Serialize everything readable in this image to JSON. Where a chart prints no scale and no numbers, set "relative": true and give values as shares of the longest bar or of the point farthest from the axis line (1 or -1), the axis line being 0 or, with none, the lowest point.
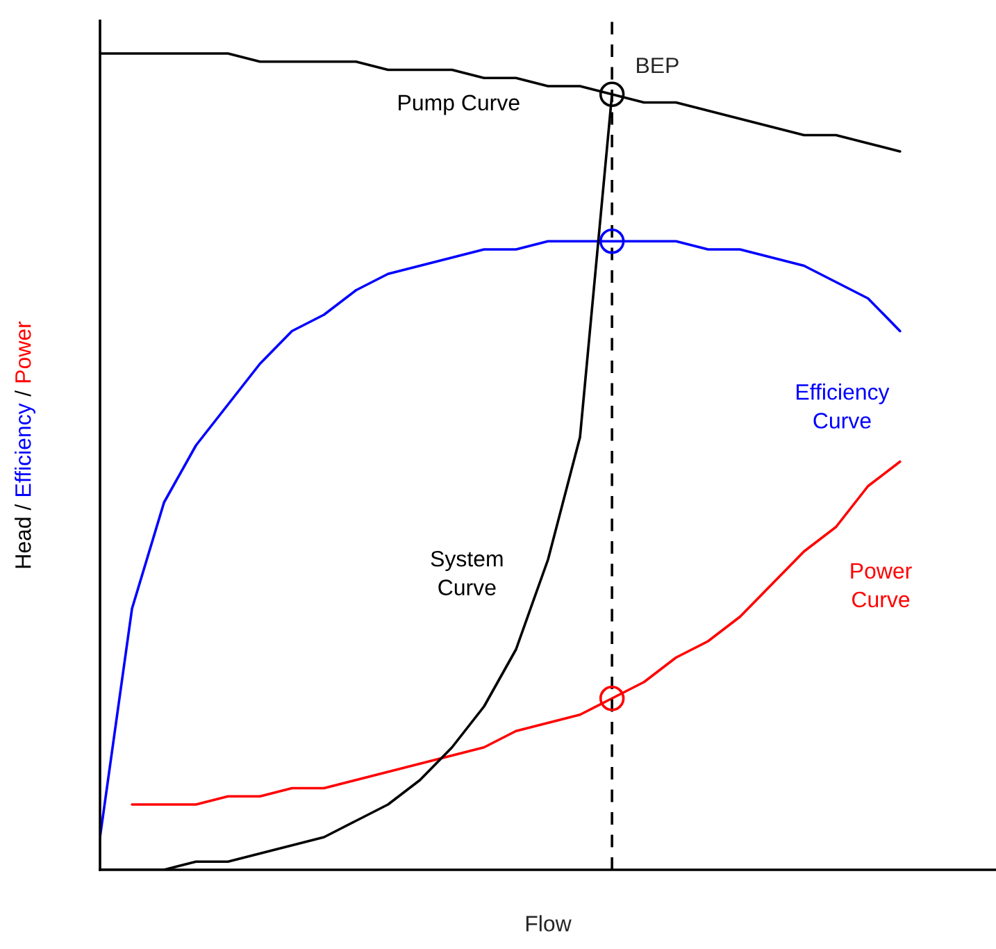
{
  "chart_data": {
    "type": "line",
    "relative": true,
    "xlabel": "Flow",
    "ylabel": "Head / Efficiency / Power",
    "categories": [
      null,
      null,
      null,
      null,
      null,
      null,
      null,
      null,
      null,
      null,
      null,
      null,
      null,
      null,
      null,
      null,
      null,
      null,
      null,
      null,
      null,
      null,
      null,
      null,
      null,
      null,
      null,
      null,
      null
    ],
    "series": [
      {
        "name": "Pump Curve",
        "color": "#000000",
        "values": [
          1.0,
          1.0,
          1.0,
          1.0,
          1.0,
          0.99,
          0.99,
          0.99,
          0.99,
          0.98,
          0.98,
          0.98,
          0.97,
          0.97,
          0.96,
          0.96,
          0.95,
          0.94,
          0.94,
          0.93,
          0.92,
          0.91,
          0.9,
          0.9,
          0.89,
          0.88,
          null,
          null,
          null
        ]
      },
      {
        "name": "Efficiency Curve",
        "color": "#0000ff",
        "values": [
          0.04,
          0.32,
          0.45,
          0.52,
          0.57,
          0.62,
          0.66,
          0.68,
          0.71,
          0.73,
          0.74,
          0.75,
          0.76,
          0.76,
          0.77,
          0.77,
          0.77,
          0.77,
          0.77,
          0.76,
          0.76,
          0.75,
          0.74,
          0.72,
          0.7,
          0.66,
          null,
          null,
          null
        ]
      },
      {
        "name": "Power Curve",
        "color": "#ff0000",
        "values": [
          null,
          0.08,
          0.08,
          0.08,
          0.09,
          0.09,
          0.1,
          0.1,
          0.11,
          0.12,
          0.13,
          0.14,
          0.15,
          0.17,
          0.18,
          0.19,
          0.21,
          0.23,
          0.26,
          0.28,
          0.31,
          0.35,
          0.39,
          0.42,
          0.47,
          0.5,
          null,
          null,
          null
        ]
      },
      {
        "name": "System Curve",
        "color": "#000000",
        "values": [
          0.0,
          0.0,
          0.0,
          0.01,
          0.01,
          0.02,
          0.03,
          0.04,
          0.06,
          0.08,
          0.11,
          0.15,
          0.2,
          0.27,
          0.38,
          0.53,
          0.95,
          null,
          null,
          null,
          null,
          null,
          null,
          null,
          null,
          null,
          null,
          null,
          null
        ]
      }
    ],
    "annotations": [
      "BEP"
    ]
  }
}
